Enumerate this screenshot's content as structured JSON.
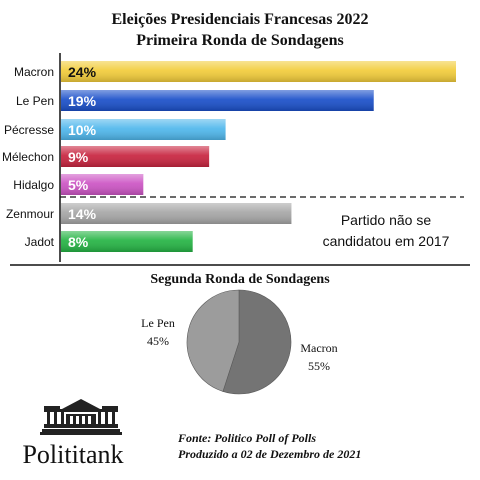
{
  "chart_data": [
    {
      "type": "bar",
      "orientation": "horizontal",
      "title": "Eleições Presidenciais Francesas 2022",
      "subtitle": "Primeira Ronda de Sondagens",
      "categories": [
        "Macron",
        "Le Pen",
        "Pécresse",
        "Mélechon",
        "Hidalgo",
        "Zenmour",
        "Jadot"
      ],
      "values": [
        24,
        19,
        10,
        9,
        5,
        14,
        8
      ],
      "value_labels": [
        "24%",
        "19%",
        "10%",
        "9%",
        "5%",
        "14%",
        "8%"
      ],
      "unit": "%",
      "xlim": [
        0,
        24
      ],
      "colors": [
        "#f2cc3a",
        "#1a4fc9",
        "#4fb7ec",
        "#c8243f",
        "#cc54c4",
        "#a6a6a6",
        "#25b444"
      ],
      "label_colors": [
        "#111111",
        "#ffffff",
        "#ffffff",
        "#ffffff",
        "#ffffff",
        "#ffffff",
        "#ffffff"
      ],
      "annotation": [
        "Partido não se",
        "candidatou em 2017"
      ],
      "grid": false
    },
    {
      "type": "pie",
      "title": "Segunda Ronda de Sondagens",
      "labels": [
        "Macron",
        "Le Pen"
      ],
      "values": [
        55,
        45
      ],
      "value_labels": [
        "55%",
        "45%"
      ],
      "colors": [
        "#747474",
        "#9c9c9c"
      ]
    }
  ],
  "footer": {
    "brand": "Polititank",
    "source": "Fonte: Politico Poll of Polls",
    "date": "Produzido a 02 de Dezembro de 2021"
  },
  "icons": {
    "logo": "parliament-building-icon"
  }
}
